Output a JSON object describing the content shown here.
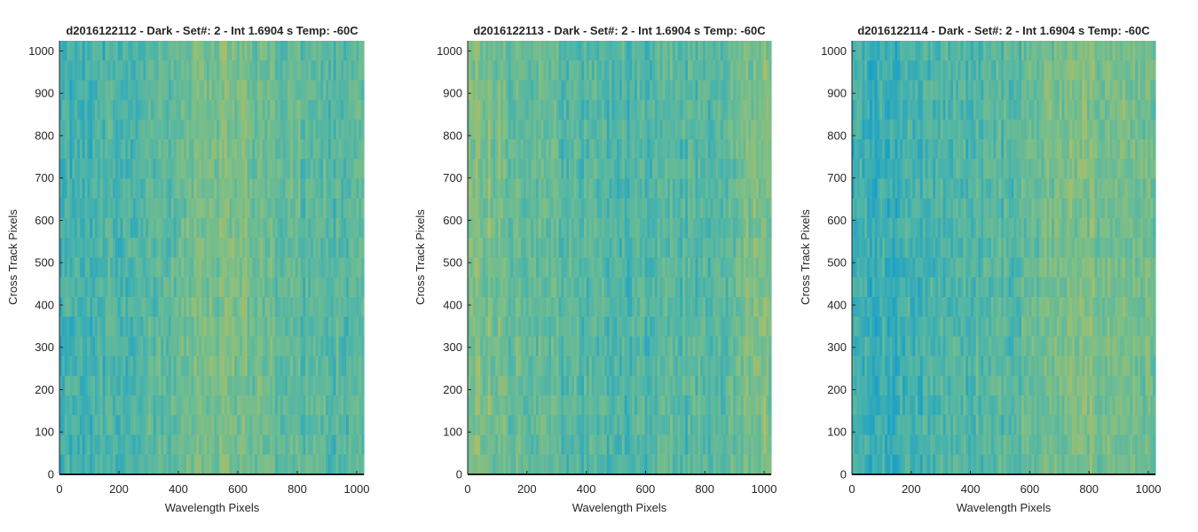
{
  "colors": {
    "blue": "#1aa0c8",
    "teal": "#4fb5a8",
    "green": "#7fbf86",
    "yellow": "#c8bd52",
    "axis": "#262626",
    "baseline": "#1a1a1a"
  },
  "chart_data": [
    {
      "type": "heatmap",
      "title": "d2016122112 - Dark - Set#: 2 - Int 1.6904 s Temp: -60C",
      "xlabel": "Wavelength Pixels",
      "ylabel": "Cross Track Pixels",
      "xlim": [
        0,
        1024
      ],
      "ylim": [
        0,
        1024
      ],
      "xticks": [
        0,
        200,
        400,
        600,
        800,
        1000
      ],
      "yticks": [
        0,
        100,
        200,
        300,
        400,
        500,
        600,
        700,
        800,
        900,
        1000
      ],
      "xtick_labels": [
        "0",
        "200",
        "400",
        "600",
        "800",
        "1000"
      ],
      "ytick_labels": [
        "0",
        "100",
        "200",
        "300",
        "400",
        "500",
        "600",
        "700",
        "800",
        "900",
        "1000"
      ],
      "colormap": "parula",
      "column_profile": [
        0.28,
        0.32,
        0.3,
        0.34,
        0.4,
        0.42,
        0.52,
        0.58,
        0.6,
        0.6,
        0.55,
        0.5,
        0.44,
        0.42,
        0.4,
        0.4
      ],
      "random_seed": 112
    },
    {
      "type": "heatmap",
      "title": "d2016122113 - Dark - Set#: 2 - Int 1.6904 s Temp: -60C",
      "xlabel": "Wavelength Pixels",
      "ylabel": "Cross Track Pixels",
      "xlim": [
        0,
        1024
      ],
      "ylim": [
        0,
        1024
      ],
      "xticks": [
        0,
        200,
        400,
        600,
        800,
        1000
      ],
      "yticks": [
        0,
        100,
        200,
        300,
        400,
        500,
        600,
        700,
        800,
        900,
        1000
      ],
      "xtick_labels": [
        "0",
        "200",
        "400",
        "600",
        "800",
        "1000"
      ],
      "ytick_labels": [
        "0",
        "100",
        "200",
        "300",
        "400",
        "500",
        "600",
        "700",
        "800",
        "900",
        "1000"
      ],
      "colormap": "parula",
      "column_profile": [
        0.66,
        0.62,
        0.55,
        0.5,
        0.45,
        0.4,
        0.38,
        0.36,
        0.36,
        0.38,
        0.4,
        0.38,
        0.42,
        0.5,
        0.6,
        0.66
      ],
      "random_seed": 113
    },
    {
      "type": "heatmap",
      "title": "d2016122114 - Dark - Set#: 2 - Int 1.6904 s Temp: -60C",
      "xlabel": "Wavelength Pixels",
      "ylabel": "Cross Track Pixels",
      "xlim": [
        0,
        1024
      ],
      "ylim": [
        0,
        1024
      ],
      "xticks": [
        0,
        200,
        400,
        600,
        800,
        1000
      ],
      "yticks": [
        0,
        100,
        200,
        300,
        400,
        500,
        600,
        700,
        800,
        900,
        1000
      ],
      "xtick_labels": [
        "0",
        "200",
        "400",
        "600",
        "800",
        "1000"
      ],
      "ytick_labels": [
        "0",
        "100",
        "200",
        "300",
        "400",
        "500",
        "600",
        "700",
        "800",
        "900",
        "1000"
      ],
      "colormap": "parula",
      "column_profile": [
        0.25,
        0.2,
        0.22,
        0.28,
        0.32,
        0.36,
        0.38,
        0.4,
        0.42,
        0.5,
        0.56,
        0.6,
        0.62,
        0.58,
        0.55,
        0.52
      ],
      "random_seed": 114
    }
  ]
}
